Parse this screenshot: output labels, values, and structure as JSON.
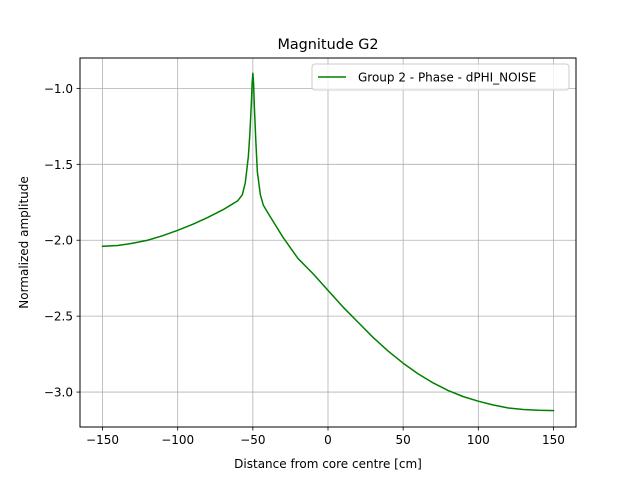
{
  "chart_data": {
    "type": "line",
    "title": "Magnitude G2",
    "xlabel": "Distance from core centre [cm]",
    "ylabel": "Normalized amplitude",
    "xlim": [
      -165,
      165
    ],
    "ylim": [
      -3.23,
      -0.8
    ],
    "xticks": [
      -150,
      -100,
      -50,
      0,
      50,
      100,
      150
    ],
    "xtick_labels": [
      "−150",
      "−100",
      "−50",
      "0",
      "50",
      "100",
      "150"
    ],
    "yticks": [
      -1.0,
      -1.5,
      -2.0,
      -2.5,
      -3.0
    ],
    "ytick_labels": [
      "−1.0",
      "−1.5",
      "−2.0",
      "−2.5",
      "−3.0"
    ],
    "grid": true,
    "legend": "top-right",
    "series": [
      {
        "name": "Group 2 - Phase - dPHI_NOISE",
        "color": "#008000",
        "x": [
          -150,
          -140,
          -130,
          -120,
          -110,
          -100,
          -90,
          -80,
          -70,
          -65,
          -60,
          -57,
          -55,
          -53,
          -52,
          -51,
          -50.5,
          -50,
          -49.5,
          -49,
          -48,
          -47,
          -45,
          -43,
          -40,
          -35,
          -30,
          -20,
          -10,
          0,
          10,
          20,
          30,
          40,
          50,
          60,
          70,
          80,
          90,
          100,
          110,
          120,
          130,
          140,
          150
        ],
        "y": [
          -2.04,
          -2.035,
          -2.02,
          -2.0,
          -1.97,
          -1.935,
          -1.895,
          -1.85,
          -1.8,
          -1.77,
          -1.74,
          -1.7,
          -1.62,
          -1.45,
          -1.3,
          -1.1,
          -0.97,
          -0.9,
          -0.97,
          -1.12,
          -1.35,
          -1.55,
          -1.7,
          -1.77,
          -1.82,
          -1.9,
          -1.98,
          -2.12,
          -2.22,
          -2.33,
          -2.44,
          -2.54,
          -2.64,
          -2.73,
          -2.81,
          -2.88,
          -2.94,
          -2.99,
          -3.03,
          -3.06,
          -3.085,
          -3.105,
          -3.115,
          -3.12,
          -3.122
        ]
      }
    ]
  }
}
